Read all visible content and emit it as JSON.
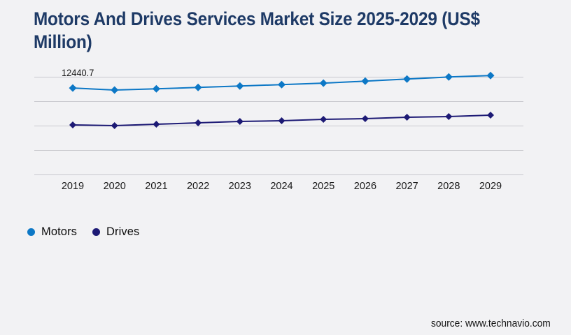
{
  "page": {
    "background": "#f2f2f4",
    "title": "Motors And Drives Services Market Size 2025-2029 (US$ Million)",
    "title_color": "#1e3a66",
    "source": "source: www.technavio.com"
  },
  "legend": {
    "items": [
      {
        "label": "Motors",
        "color": "#0d78c6"
      },
      {
        "label": "Drives",
        "color": "#1d1a75"
      }
    ]
  },
  "chart_data": {
    "type": "line",
    "title": "Motors And Drives Services Market Size 2025-2029 (US$ Million)",
    "x": [
      2019,
      2020,
      2021,
      2022,
      2023,
      2024,
      2025,
      2026,
      2027,
      2028,
      2029
    ],
    "series": [
      {
        "name": "Motors",
        "color": "#0d78c6",
        "marker": "diamond",
        "marker_size": 5.5,
        "values": [
          12440.7,
          12150,
          12330,
          12520,
          12720,
          12930,
          13140,
          13420,
          13720,
          14020,
          14230
        ]
      },
      {
        "name": "Drives",
        "color": "#1d1a75",
        "marker": "diamond",
        "marker_size": 5,
        "values": [
          7150,
          7050,
          7250,
          7450,
          7650,
          7750,
          7950,
          8050,
          8250,
          8350,
          8550
        ]
      }
    ],
    "annotations": [
      {
        "series": "Motors",
        "x": 2019,
        "text": "12440.7"
      }
    ],
    "xlabel": "",
    "ylabel": "",
    "ylim": [
      0,
      14000
    ],
    "gridline_step": 3500,
    "grid": "horizontal-only",
    "y_axis_labels_visible": false,
    "legend_position": "bottom-left",
    "gridline_color": "#c9c9ce",
    "text_color": "#1a1a1a"
  }
}
